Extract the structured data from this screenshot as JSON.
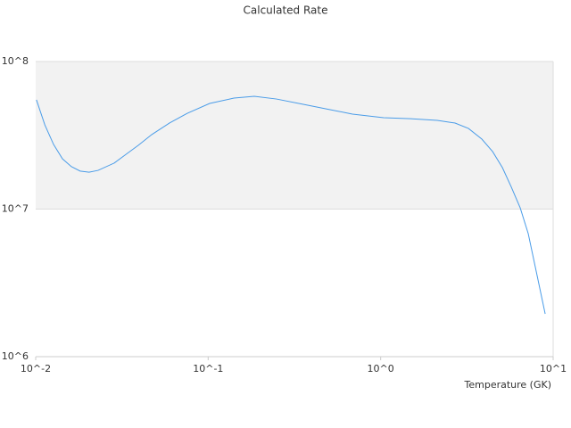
{
  "chart_data": {
    "type": "line",
    "title": "Calculated Rate",
    "x_label": "Temperature (GK)",
    "x": [
      0.0101,
      0.0113,
      0.0127,
      0.0143,
      0.0161,
      0.0181,
      0.0204,
      0.023,
      0.0285,
      0.0329,
      0.0394,
      0.0471,
      0.0597,
      0.0757,
      0.102,
      0.141,
      0.185,
      0.249,
      0.356,
      0.509,
      0.687,
      1.04,
      1.49,
      2.13,
      2.7,
      3.23,
      3.86,
      4.46,
      5.08,
      5.72,
      6.44,
      7.17,
      7.99,
      8.99
    ],
    "series": [
      {
        "color": "#4a9ce8",
        "values": [
          55000000,
          37200000,
          27400000,
          21900000,
          19400000,
          18100000,
          17800000,
          18300000,
          20500000,
          23200000,
          27100000,
          32000000,
          38300000,
          44600000,
          52000000,
          56500000,
          58100000,
          55700000,
          51300000,
          47200000,
          44000000,
          41600000,
          41000000,
          39900000,
          38300000,
          35200000,
          29800000,
          24500000,
          19100000,
          14100000,
          10200000,
          6820000,
          3750000,
          1950000
        ]
      }
    ],
    "xlim": [
      0.01,
      10
    ],
    "ylim": [
      1000000,
      100000000
    ],
    "xticks": [
      {
        "value": 0.01,
        "label": "10^-2"
      },
      {
        "value": 0.1,
        "label": "10^-1"
      },
      {
        "value": 1,
        "label": "10^0"
      },
      {
        "value": 10,
        "label": "10^1"
      }
    ],
    "yticks": [
      {
        "value": 1000000,
        "label": "10^6"
      },
      {
        "value": 10000000,
        "label": "10^7"
      },
      {
        "value": 100000000,
        "label": "10^8"
      }
    ],
    "x_log": true,
    "y_log": true,
    "grid": true
  }
}
